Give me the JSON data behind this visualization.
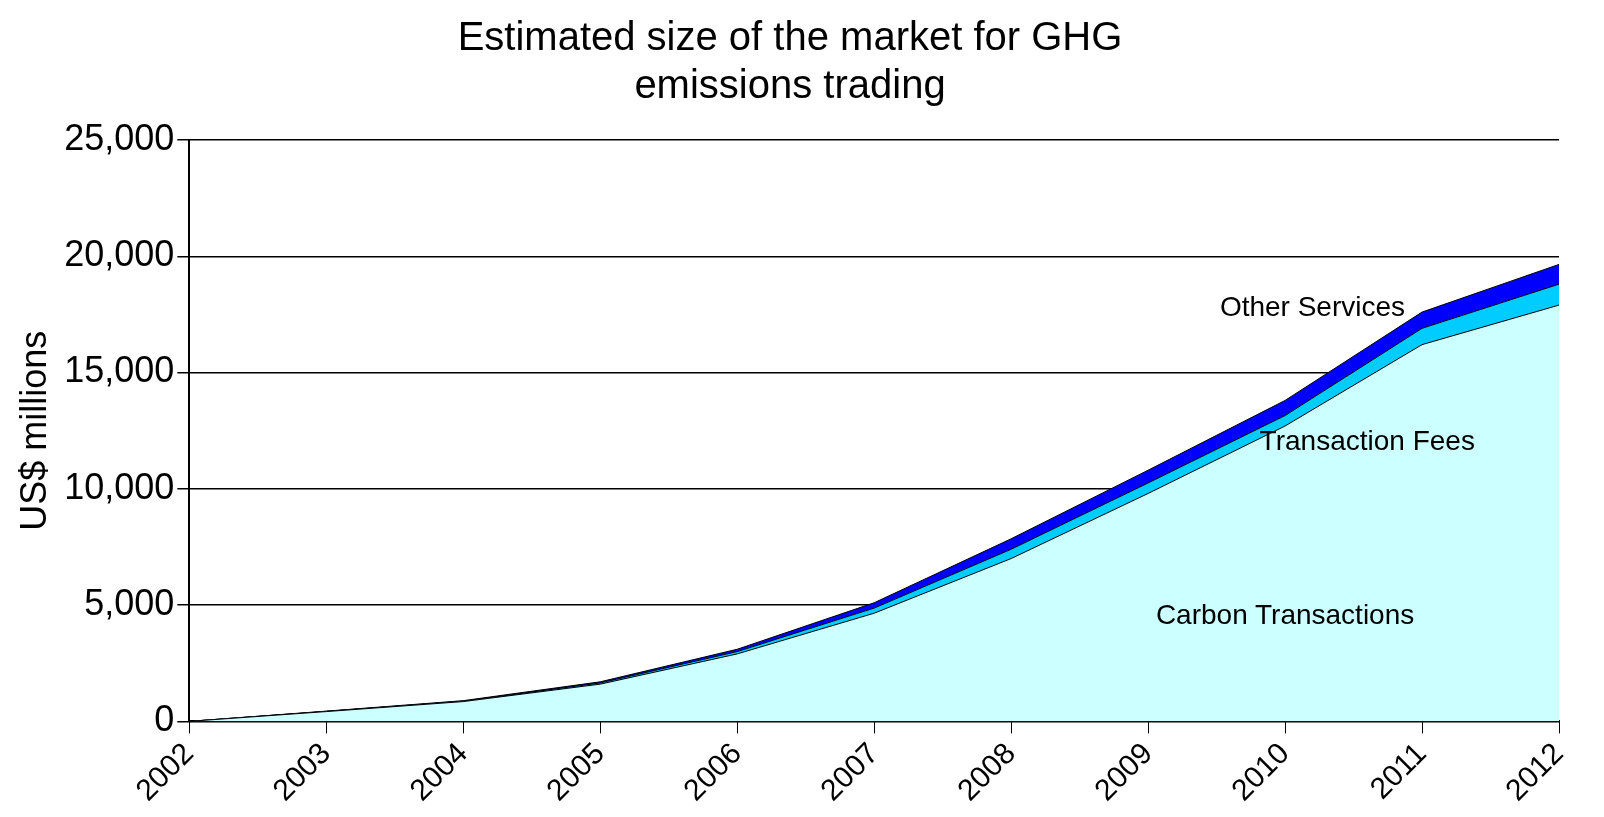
{
  "chart_data": {
    "type": "area",
    "stacked": true,
    "title": "Estimated size of the market for GHG emissions trading",
    "ylabel": "US$ millions",
    "categories": [
      "2002",
      "2003",
      "2004",
      "2005",
      "2006",
      "2007",
      "2008",
      "2009",
      "2010",
      "2011",
      "2012"
    ],
    "series": [
      {
        "name": "Carbon Transactions",
        "color": "#ccffff",
        "values": [
          0,
          420,
          850,
          1600,
          2900,
          4650,
          7000,
          9800,
          12700,
          16200,
          17900
        ]
      },
      {
        "name": "Transaction Fees",
        "color": "#00ccff",
        "values": [
          0,
          10,
          20,
          50,
          100,
          220,
          400,
          450,
          450,
          700,
          900
        ]
      },
      {
        "name": "Other Services",
        "color": "#0000ff",
        "values": [
          0,
          10,
          20,
          50,
          100,
          230,
          450,
          550,
          650,
          700,
          850
        ]
      }
    ],
    "ylim": [
      0,
      25000
    ],
    "yticks": [
      {
        "value": 0,
        "label": "0"
      },
      {
        "value": 5000,
        "label": "5,000"
      },
      {
        "value": 10000,
        "label": "10,000"
      },
      {
        "value": 15000,
        "label": "15,000"
      },
      {
        "value": 20000,
        "label": "20,000"
      },
      {
        "value": 25000,
        "label": "25,000"
      }
    ],
    "grid": "y",
    "legend": false
  }
}
